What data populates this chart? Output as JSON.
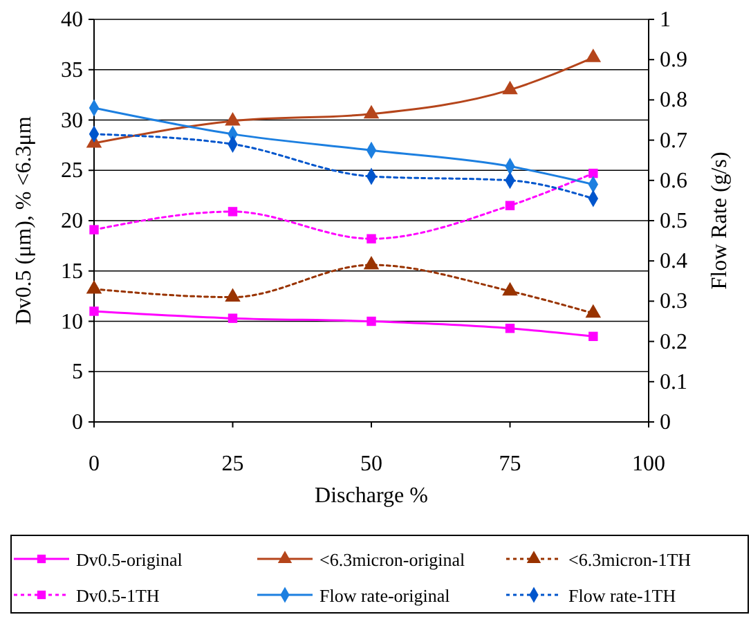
{
  "chart_data": {
    "type": "line",
    "xlabel": "Discharge %",
    "ylabel": "Dv0.5 (μm), % <6.3μm",
    "y2label": "Flow Rate (g/s)",
    "x": [
      0,
      25,
      50,
      75,
      90
    ],
    "xlim": [
      0,
      100
    ],
    "xticks": [
      0,
      25,
      50,
      75,
      100
    ],
    "ylim": [
      0,
      40
    ],
    "yticks": [
      0,
      5,
      10,
      15,
      20,
      25,
      30,
      35,
      40
    ],
    "y2lim": [
      0,
      1
    ],
    "y2ticks": [
      0,
      0.1,
      0.2,
      0.3,
      0.4,
      0.5,
      0.6,
      0.7,
      0.8,
      0.9,
      1
    ],
    "grid": "y",
    "legend": "bottom",
    "series": [
      {
        "name": "Dv0.5-original",
        "color": "#ff00ff",
        "marker": "square",
        "line_style": "solid",
        "values": [
          11,
          10.3,
          10,
          9.3,
          8.5
        ]
      },
      {
        "name": "<6.3micron-original",
        "color": "#b5451b",
        "marker": "triangle",
        "line_style": "solid",
        "values": [
          27.7,
          29.9,
          30.6,
          33,
          36.2
        ]
      },
      {
        "name": "<6.3micron-1TH",
        "color": "#993300",
        "marker": "triangle",
        "line_style": "dotted",
        "values": [
          13.2,
          12.4,
          15.6,
          13,
          10.8
        ]
      },
      {
        "name": "Dv0.5-1TH",
        "color": "#ff00ff",
        "marker": "square",
        "line_style": "dotted",
        "values": [
          19.1,
          20.9,
          18.2,
          21.5,
          24.7
        ]
      },
      {
        "name": "Flow rate-original",
        "color": "#1c7fe0",
        "marker": "diamond",
        "line_style": "solid",
        "axis": "y2",
        "values": [
          0.78,
          0.715,
          0.675,
          0.635,
          0.59
        ]
      },
      {
        "name": "Flow rate-1TH",
        "color": "#0055cc",
        "marker": "diamond",
        "line_style": "dotted",
        "axis": "y2",
        "values": [
          0.715,
          0.69,
          0.61,
          0.6,
          0.555
        ]
      }
    ]
  }
}
